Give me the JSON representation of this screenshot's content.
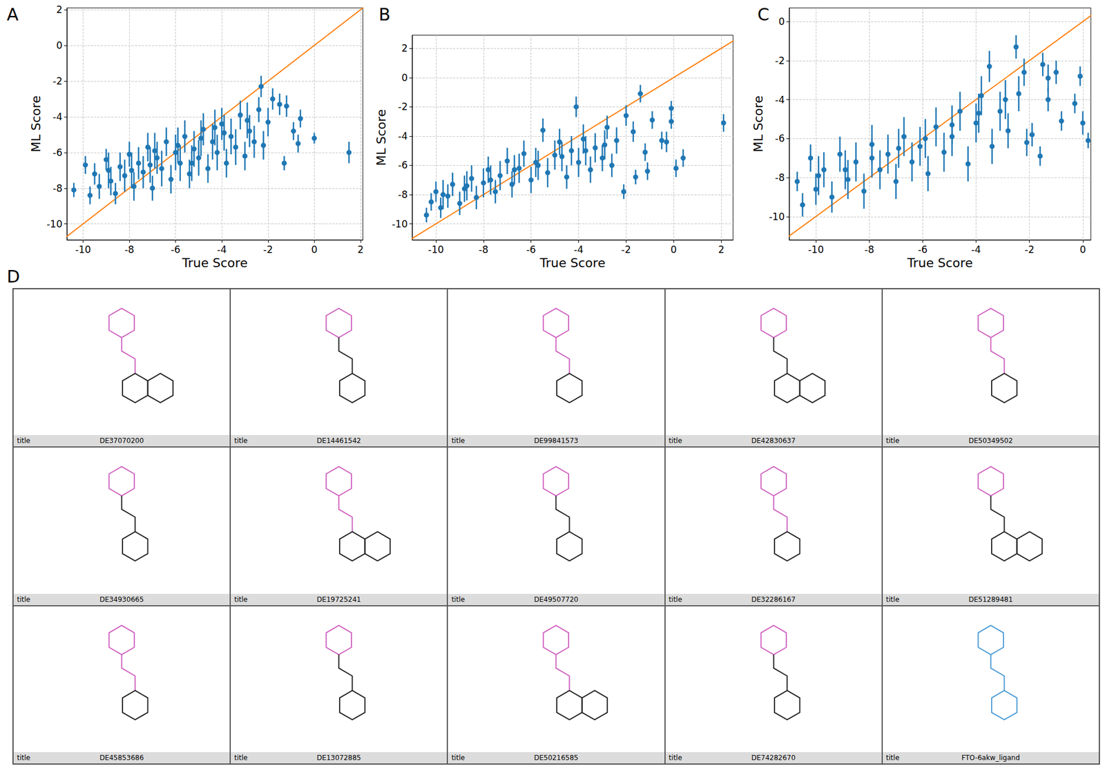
{
  "chart_data": [
    {
      "type": "scatter",
      "label": "A",
      "xlabel": "True Score",
      "ylabel": "ML Score",
      "grid": true,
      "color": "#1f77b4",
      "xlim": [
        -10.7,
        2.1
      ],
      "xticks": [
        -10,
        -8,
        -6,
        -4,
        -2,
        0,
        2
      ],
      "ylim": [
        -10.9,
        2.1
      ],
      "yticks": [
        -10,
        -8,
        -6,
        -4,
        -2,
        0,
        2
      ],
      "reference_line": {
        "x": [
          -12,
          3
        ],
        "values": [
          -12,
          3
        ],
        "color": "#ff7f0e"
      },
      "x": [
        -10.4,
        -9.9,
        -9.7,
        -9.5,
        -9.3,
        -9.0,
        -8.8,
        -8.6,
        -8.4,
        -8.2,
        -8.0,
        -7.8,
        -7.6,
        -7.4,
        -7.2,
        -7.0,
        -6.8,
        -6.6,
        -6.4,
        -6.2,
        -6.0,
        -5.8,
        -5.6,
        -5.4,
        -5.2,
        -5.0,
        -4.8,
        -4.6,
        -4.4,
        -4.2,
        -4.0,
        -3.8,
        -3.6,
        -3.4,
        -3.2,
        -3.0,
        -2.8,
        -2.6,
        -2.4,
        -2.3,
        -2.2,
        -2.0,
        -1.8,
        -1.5,
        -1.3,
        -1.2,
        -0.9,
        -0.7,
        -0.6,
        0.0,
        1.5,
        -7.9,
        -6.9,
        -5.9,
        -4.9,
        -3.9,
        -2.9,
        -8.9,
        -7.1,
        -5.3,
        -4.3
      ],
      "values": [
        -8.1,
        -6.7,
        -8.4,
        -7.2,
        -7.9,
        -6.4,
        -7.6,
        -8.3,
        -6.8,
        -7.3,
        -6.1,
        -7.9,
        -6.6,
        -7.1,
        -5.7,
        -8.0,
        -6.3,
        -6.9,
        -5.4,
        -7.5,
        -6.0,
        -6.6,
        -5.1,
        -7.2,
        -5.8,
        -6.3,
        -4.7,
        -6.9,
        -5.4,
        -6.0,
        -4.4,
        -6.6,
        -5.1,
        -5.7,
        -3.9,
        -6.2,
        -4.8,
        -5.4,
        -3.6,
        -2.3,
        -5.6,
        -4.3,
        -3.0,
        -3.3,
        -6.6,
        -3.4,
        -4.8,
        -5.5,
        -4.1,
        -5.2,
        -6.0,
        -7.0,
        -5.9,
        -5.6,
        -5.2,
        -4.9,
        -4.2,
        -7.0,
        -6.7,
        -6.6,
        -4.6
      ],
      "errors": [
        0.4,
        0.5,
        0.5,
        0.6,
        0.7,
        0.6,
        0.8,
        0.6,
        0.8,
        0.9,
        0.7,
        0.8,
        0.9,
        0.9,
        0.8,
        0.7,
        0.9,
        1.0,
        0.8,
        0.8,
        1.0,
        1.0,
        0.9,
        0.8,
        1.0,
        1.0,
        0.9,
        0.8,
        1.0,
        1.0,
        0.9,
        0.8,
        1.0,
        1.0,
        0.8,
        0.8,
        0.9,
        0.9,
        0.7,
        0.6,
        0.8,
        0.8,
        0.6,
        0.6,
        0.4,
        0.6,
        0.5,
        0.5,
        0.5,
        0.3,
        0.6,
        1.0,
        1.0,
        1.0,
        1.0,
        1.0,
        1.0,
        1.0,
        1.0,
        1.0,
        1.0
      ]
    },
    {
      "type": "scatter",
      "label": "B",
      "xlabel": "True Score",
      "ylabel": "ML Score",
      "grid": true,
      "color": "#1f77b4",
      "xlim": [
        -11,
        2.5
      ],
      "xticks": [
        -10,
        -8,
        -6,
        -4,
        -2,
        0,
        2
      ],
      "ylim": [
        -11.1,
        2.9
      ],
      "yticks": [
        -10,
        -8,
        -6,
        -4,
        -2,
        0,
        2
      ],
      "reference_line": {
        "x": [
          -12,
          3
        ],
        "values": [
          -12,
          3
        ],
        "color": "#ff7f0e"
      },
      "x": [
        -10.4,
        -10.2,
        -10.0,
        -9.8,
        -9.5,
        -9.3,
        -9.0,
        -8.8,
        -8.5,
        -8.3,
        -8.0,
        -7.8,
        -7.5,
        -7.3,
        -7.0,
        -6.8,
        -6.5,
        -6.3,
        -6.0,
        -5.8,
        -5.5,
        -5.3,
        -5.0,
        -4.8,
        -4.5,
        -4.3,
        -4.1,
        -4.0,
        -3.8,
        -3.5,
        -3.3,
        -3.0,
        -2.8,
        -2.6,
        -2.4,
        -2.1,
        -2.0,
        -1.7,
        -1.6,
        -1.4,
        -1.2,
        -1.1,
        -0.9,
        -0.5,
        -0.3,
        -0.1,
        -0.1,
        0.1,
        0.4,
        2.1,
        -9.7,
        -8.7,
        -7.7,
        -6.7,
        -5.7,
        -4.7,
        -3.7,
        -2.9
      ],
      "values": [
        -9.4,
        -8.5,
        -7.8,
        -8.9,
        -8.1,
        -7.3,
        -8.6,
        -7.6,
        -6.9,
        -8.2,
        -7.2,
        -6.3,
        -7.8,
        -6.7,
        -5.7,
        -7.3,
        -6.2,
        -5.2,
        -7.0,
        -5.8,
        -3.6,
        -6.5,
        -5.3,
        -4.4,
        -6.8,
        -5.0,
        -2.0,
        -5.8,
        -4.2,
        -6.3,
        -4.8,
        -5.5,
        -3.4,
        -6.0,
        -4.3,
        -7.8,
        -2.6,
        -3.7,
        -6.8,
        -1.1,
        -5.1,
        -6.4,
        -2.9,
        -4.3,
        -4.4,
        -2.1,
        -3.0,
        -6.2,
        -5.5,
        -3.1,
        -8.0,
        -7.4,
        -7.0,
        -6.3,
        -6.0,
        -5.4,
        -5.0,
        -4.6
      ],
      "errors": [
        0.5,
        0.6,
        0.7,
        0.7,
        0.8,
        0.8,
        0.8,
        0.9,
        0.9,
        0.8,
        1.0,
        0.9,
        0.8,
        1.0,
        0.9,
        0.9,
        1.0,
        0.9,
        0.9,
        1.0,
        0.8,
        1.0,
        1.0,
        0.9,
        0.8,
        1.0,
        0.7,
        1.0,
        1.0,
        0.9,
        1.0,
        0.9,
        0.8,
        0.8,
        0.9,
        0.5,
        0.7,
        0.7,
        0.5,
        0.6,
        0.6,
        0.6,
        0.6,
        0.6,
        0.7,
        0.5,
        0.5,
        0.6,
        0.6,
        0.6,
        1.0,
        1.0,
        1.0,
        1.0,
        1.0,
        1.0,
        1.0,
        1.0
      ]
    },
    {
      "type": "scatter",
      "label": "C",
      "xlabel": "True Score",
      "ylabel": "ML Score",
      "grid": true,
      "color": "#1f77b4",
      "xlim": [
        -11,
        0.3
      ],
      "xticks": [
        -10,
        -8,
        -6,
        -4,
        -2,
        0
      ],
      "ylim": [
        -11.2,
        0.7
      ],
      "yticks": [
        -10,
        -8,
        -6,
        -4,
        -2,
        0
      ],
      "reference_line": {
        "x": [
          -12,
          3
        ],
        "values": [
          -12,
          3
        ],
        "color": "#ff7f0e"
      },
      "x": [
        -10.7,
        -10.5,
        -10.2,
        -10.0,
        -9.7,
        -9.4,
        -9.1,
        -8.8,
        -8.5,
        -8.2,
        -7.9,
        -7.6,
        -7.3,
        -7.0,
        -6.7,
        -6.4,
        -6.1,
        -5.8,
        -5.5,
        -5.2,
        -4.9,
        -4.6,
        -4.3,
        -4.0,
        -3.8,
        -3.5,
        -3.4,
        -3.1,
        -2.8,
        -2.5,
        -2.4,
        -2.2,
        -2.1,
        -1.9,
        -1.6,
        -1.5,
        -1.3,
        -1.3,
        -1.0,
        -0.8,
        -0.3,
        -0.1,
        0.0,
        0.2,
        -9.9,
        -8.9,
        -7.9,
        -6.9,
        -5.9,
        -4.9,
        -3.9,
        -2.9
      ],
      "values": [
        -8.2,
        -9.4,
        -7.0,
        -8.6,
        -7.6,
        -9.0,
        -6.8,
        -8.1,
        -7.2,
        -8.7,
        -6.3,
        -7.6,
        -6.8,
        -8.2,
        -5.9,
        -7.2,
        -6.4,
        -7.8,
        -5.4,
        -6.7,
        -5.9,
        -4.6,
        -7.3,
        -5.2,
        -3.8,
        -2.3,
        -6.4,
        -4.6,
        -5.6,
        -1.3,
        -3.7,
        -2.6,
        -6.2,
        -5.8,
        -6.9,
        -2.2,
        -2.9,
        -4.0,
        -2.6,
        -5.1,
        -4.2,
        -2.8,
        -5.2,
        -6.1,
        -7.9,
        -7.6,
        -7.0,
        -6.5,
        -6.0,
        -5.3,
        -4.7,
        -4.0
      ],
      "errors": [
        0.5,
        0.6,
        0.7,
        0.8,
        0.9,
        0.8,
        0.9,
        1.0,
        1.0,
        0.9,
        1.0,
        1.0,
        1.0,
        0.9,
        1.0,
        1.0,
        1.0,
        0.9,
        1.0,
        1.0,
        1.0,
        1.0,
        0.9,
        1.0,
        1.0,
        0.8,
        0.9,
        1.0,
        0.9,
        0.6,
        0.9,
        0.7,
        0.7,
        0.6,
        0.5,
        0.6,
        0.7,
        0.6,
        0.6,
        0.5,
        0.5,
        0.5,
        0.6,
        0.4,
        1.0,
        1.0,
        1.0,
        1.0,
        1.0,
        1.0,
        1.0,
        1.0
      ]
    }
  ],
  "structure_grid": {
    "label": "D",
    "cells": [
      {
        "label": "title",
        "id": "DE37070200"
      },
      {
        "label": "title",
        "id": "DE14461542"
      },
      {
        "label": "title",
        "id": "DE99841573"
      },
      {
        "label": "title",
        "id": "DE42830637"
      },
      {
        "label": "title",
        "id": "DE50349502"
      },
      {
        "label": "title",
        "id": "DE34930665"
      },
      {
        "label": "title",
        "id": "DE19725241"
      },
      {
        "label": "title",
        "id": "DE49507720"
      },
      {
        "label": "title",
        "id": "DE32286167"
      },
      {
        "label": "title",
        "id": "DE51289481"
      },
      {
        "label": "title",
        "id": "DE45853686"
      },
      {
        "label": "title",
        "id": "DE13072885"
      },
      {
        "label": "title",
        "id": "DE50216585"
      },
      {
        "label": "title",
        "id": "DE74282670"
      },
      {
        "label": "title",
        "id": "FTO-6akw_ligand"
      }
    ]
  }
}
